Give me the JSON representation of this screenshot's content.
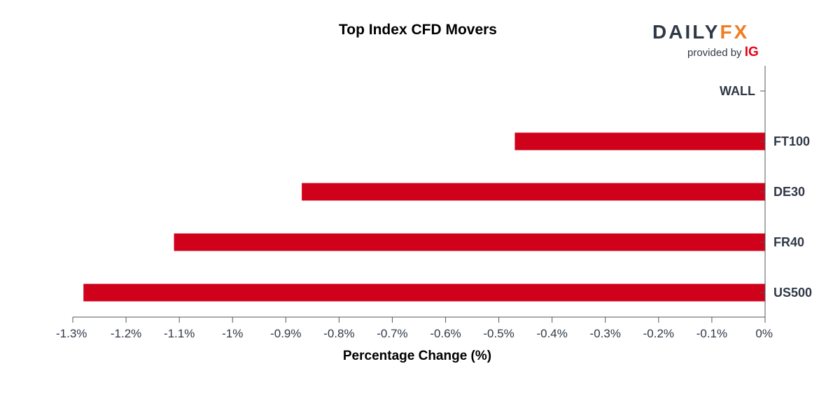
{
  "brand": {
    "logo_text_main": "DAILY",
    "logo_text_accent": "FX",
    "provided_by": "provided by",
    "ig": "IG",
    "colors": {
      "daily": "#2f3946",
      "fx": "#ef7d22",
      "ig": "#e20613"
    }
  },
  "chart_data": {
    "type": "bar",
    "orientation": "horizontal",
    "title": "Top Index CFD Movers",
    "xlabel": "Percentage Change (%)",
    "ylabel": "",
    "categories": [
      "WALL",
      "FT100",
      "DE30",
      "FR40",
      "US500"
    ],
    "values": [
      0,
      -0.47,
      -0.87,
      -1.11,
      -1.28
    ],
    "xlim": [
      -1.3,
      0
    ],
    "x_ticks": [
      -1.3,
      -1.2,
      -1.1,
      -1.0,
      -0.9,
      -0.8,
      -0.7,
      -0.6,
      -0.5,
      -0.4,
      -0.3,
      -0.2,
      -0.1,
      0
    ],
    "x_tick_labels": [
      "-1.3%",
      "-1.2%",
      "-1.1%",
      "-1%",
      "-0.9%",
      "-0.8%",
      "-0.7%",
      "-0.6%",
      "-0.5%",
      "-0.4%",
      "-0.3%",
      "-0.2%",
      "-0.1%",
      "0%"
    ],
    "category_axis_position": "right",
    "grid": false,
    "bar_color": "#d0021b",
    "axis_color": "#555555"
  }
}
